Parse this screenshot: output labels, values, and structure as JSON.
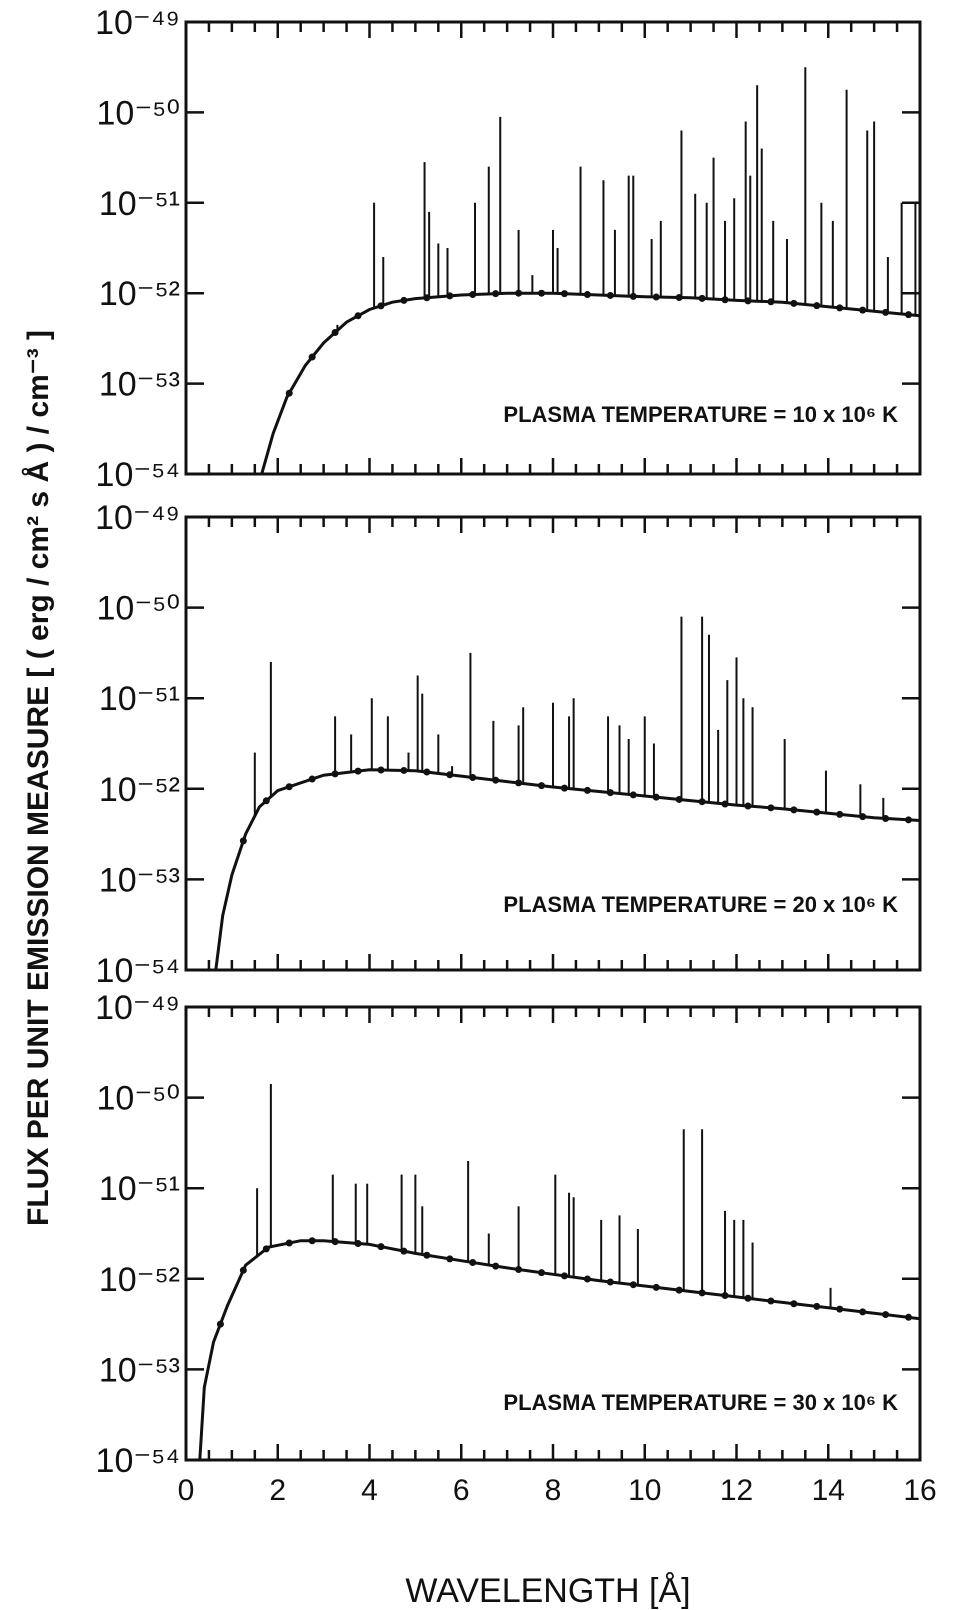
{
  "figure": {
    "ylabel": "FLUX PER UNIT EMISSION MEASURE [ ( erg / cm² s Å ) / cm⁻³ ]",
    "xlabel": "WAVELENGTH  [Å]"
  },
  "chart_data": [
    {
      "type": "line",
      "annotation": "PLASMA TEMPERATURE = 10 x 10⁶ K",
      "x_axis": {
        "lim": [
          0,
          16
        ],
        "ticks": [
          0,
          2,
          4,
          6,
          8,
          10,
          12,
          14,
          16
        ]
      },
      "y_axis": {
        "scale": "log",
        "ylim_exponent": [
          -54,
          -49
        ],
        "tick_exponents": [
          -49,
          -50,
          -51,
          -52,
          -53,
          -54
        ],
        "tick_base": "10"
      },
      "continuum": [
        [
          1.65,
          -54.0
        ],
        [
          1.9,
          -53.55
        ],
        [
          2.2,
          -53.15
        ],
        [
          2.6,
          -52.8
        ],
        [
          3.0,
          -52.55
        ],
        [
          3.5,
          -52.32
        ],
        [
          4.0,
          -52.18
        ],
        [
          4.5,
          -52.1
        ],
        [
          5.0,
          -52.06
        ],
        [
          6.0,
          -52.02
        ],
        [
          7.0,
          -52.0
        ],
        [
          8.0,
          -52.0
        ],
        [
          9.0,
          -52.02
        ],
        [
          10.0,
          -52.04
        ],
        [
          11.0,
          -52.05
        ],
        [
          12.0,
          -52.08
        ],
        [
          13.0,
          -52.1
        ],
        [
          14.0,
          -52.15
        ],
        [
          15.0,
          -52.2
        ],
        [
          16.0,
          -52.25
        ]
      ],
      "lines": [
        [
          3.3,
          -52.35
        ],
        [
          4.1,
          -51.0
        ],
        [
          4.3,
          -51.6
        ],
        [
          5.2,
          -50.55
        ],
        [
          5.3,
          -51.1
        ],
        [
          5.5,
          -51.45
        ],
        [
          5.7,
          -51.5
        ],
        [
          6.3,
          -51.0
        ],
        [
          6.6,
          -50.6
        ],
        [
          6.85,
          -50.05
        ],
        [
          7.25,
          -51.3
        ],
        [
          7.55,
          -51.8
        ],
        [
          8.0,
          -51.3
        ],
        [
          8.1,
          -51.5
        ],
        [
          8.6,
          -50.6
        ],
        [
          9.1,
          -50.75
        ],
        [
          9.35,
          -51.3
        ],
        [
          9.65,
          -50.7
        ],
        [
          9.75,
          -50.7
        ],
        [
          10.15,
          -51.4
        ],
        [
          10.35,
          -51.2
        ],
        [
          10.8,
          -50.2
        ],
        [
          11.1,
          -50.9
        ],
        [
          11.35,
          -51.0
        ],
        [
          11.5,
          -50.5
        ],
        [
          11.75,
          -51.2
        ],
        [
          11.95,
          -50.95
        ],
        [
          12.2,
          -50.1
        ],
        [
          12.3,
          -50.7
        ],
        [
          12.45,
          -49.7
        ],
        [
          12.55,
          -50.4
        ],
        [
          12.8,
          -51.2
        ],
        [
          13.1,
          -51.4
        ],
        [
          13.5,
          -49.5
        ],
        [
          13.85,
          -51.0
        ],
        [
          14.1,
          -51.2
        ],
        [
          14.4,
          -49.75
        ],
        [
          14.85,
          -50.2
        ],
        [
          15.0,
          -50.1
        ],
        [
          15.3,
          -51.6
        ],
        [
          15.6,
          -51.0
        ],
        [
          15.9,
          -51.0
        ]
      ]
    },
    {
      "type": "line",
      "annotation": "PLASMA TEMPERATURE = 20 x 10⁶ K",
      "x_axis": {
        "lim": [
          0,
          16
        ],
        "ticks": [
          0,
          2,
          4,
          6,
          8,
          10,
          12,
          14,
          16
        ]
      },
      "y_axis": {
        "scale": "log",
        "ylim_exponent": [
          -54,
          -49
        ],
        "tick_exponents": [
          -49,
          -50,
          -51,
          -52,
          -53,
          -54
        ],
        "tick_base": "10"
      },
      "continuum": [
        [
          0.65,
          -54.0
        ],
        [
          0.8,
          -53.4
        ],
        [
          1.0,
          -52.95
        ],
        [
          1.3,
          -52.5
        ],
        [
          1.6,
          -52.2
        ],
        [
          2.0,
          -52.02
        ],
        [
          3.0,
          -51.85
        ],
        [
          4.0,
          -51.79
        ],
        [
          5.0,
          -51.8
        ],
        [
          6.0,
          -51.86
        ],
        [
          7.0,
          -51.92
        ],
        [
          8.0,
          -51.98
        ],
        [
          9.0,
          -52.03
        ],
        [
          10.0,
          -52.08
        ],
        [
          11.0,
          -52.13
        ],
        [
          12.0,
          -52.18
        ],
        [
          13.0,
          -52.22
        ],
        [
          14.0,
          -52.27
        ],
        [
          15.0,
          -52.32
        ],
        [
          16.0,
          -52.35
        ]
      ],
      "lines": [
        [
          1.5,
          -51.6
        ],
        [
          1.85,
          -50.6
        ],
        [
          3.25,
          -51.2
        ],
        [
          3.6,
          -51.4
        ],
        [
          4.05,
          -51.0
        ],
        [
          4.4,
          -51.2
        ],
        [
          4.85,
          -51.6
        ],
        [
          5.05,
          -50.75
        ],
        [
          5.15,
          -50.95
        ],
        [
          5.5,
          -51.4
        ],
        [
          5.8,
          -51.75
        ],
        [
          6.2,
          -50.5
        ],
        [
          6.7,
          -51.25
        ],
        [
          7.25,
          -51.3
        ],
        [
          7.35,
          -51.1
        ],
        [
          8.0,
          -51.05
        ],
        [
          8.35,
          -51.2
        ],
        [
          8.45,
          -51.0
        ],
        [
          9.2,
          -51.2
        ],
        [
          9.45,
          -51.3
        ],
        [
          9.65,
          -51.45
        ],
        [
          10.0,
          -51.2
        ],
        [
          10.2,
          -51.5
        ],
        [
          10.8,
          -50.1
        ],
        [
          11.25,
          -50.1
        ],
        [
          11.4,
          -50.3
        ],
        [
          11.6,
          -51.35
        ],
        [
          11.8,
          -50.8
        ],
        [
          12.0,
          -50.55
        ],
        [
          12.15,
          -51.0
        ],
        [
          12.35,
          -51.1
        ],
        [
          13.05,
          -51.45
        ],
        [
          13.95,
          -51.8
        ],
        [
          14.7,
          -51.95
        ],
        [
          15.2,
          -52.1
        ]
      ]
    },
    {
      "type": "line",
      "annotation": "PLASMA TEMPERATURE = 30 x 10⁶ K",
      "x_axis": {
        "lim": [
          0,
          16
        ],
        "ticks": [
          0,
          2,
          4,
          6,
          8,
          10,
          12,
          14,
          16
        ]
      },
      "y_axis": {
        "scale": "log",
        "ylim_exponent": [
          -54,
          -49
        ],
        "tick_exponents": [
          -49,
          -50,
          -51,
          -52,
          -53,
          -54
        ],
        "tick_base": "10"
      },
      "continuum": [
        [
          0.3,
          -54.0
        ],
        [
          0.4,
          -53.2
        ],
        [
          0.6,
          -52.7
        ],
        [
          0.9,
          -52.3
        ],
        [
          1.3,
          -51.85
        ],
        [
          1.8,
          -51.65
        ],
        [
          2.5,
          -51.58
        ],
        [
          3.0,
          -51.58
        ],
        [
          4.0,
          -51.62
        ],
        [
          5.0,
          -51.72
        ],
        [
          6.0,
          -51.8
        ],
        [
          7.0,
          -51.88
        ],
        [
          8.0,
          -51.95
        ],
        [
          9.0,
          -52.02
        ],
        [
          10.0,
          -52.08
        ],
        [
          11.0,
          -52.14
        ],
        [
          12.0,
          -52.2
        ],
        [
          13.0,
          -52.26
        ],
        [
          14.0,
          -52.32
        ],
        [
          15.0,
          -52.38
        ],
        [
          16.0,
          -52.44
        ]
      ],
      "lines": [
        [
          1.55,
          -51.0
        ],
        [
          1.85,
          -49.85
        ],
        [
          3.2,
          -50.85
        ],
        [
          3.7,
          -50.95
        ],
        [
          3.95,
          -50.95
        ],
        [
          4.7,
          -50.85
        ],
        [
          5.0,
          -50.85
        ],
        [
          5.15,
          -51.2
        ],
        [
          6.15,
          -50.7
        ],
        [
          6.6,
          -51.5
        ],
        [
          7.25,
          -51.2
        ],
        [
          8.05,
          -50.85
        ],
        [
          8.35,
          -51.05
        ],
        [
          8.45,
          -51.1
        ],
        [
          9.05,
          -51.35
        ],
        [
          9.45,
          -51.3
        ],
        [
          9.85,
          -51.45
        ],
        [
          10.85,
          -50.35
        ],
        [
          11.25,
          -50.35
        ],
        [
          11.75,
          -51.25
        ],
        [
          11.95,
          -51.35
        ],
        [
          12.15,
          -51.35
        ],
        [
          12.35,
          -51.6
        ],
        [
          14.05,
          -52.1
        ]
      ]
    }
  ]
}
